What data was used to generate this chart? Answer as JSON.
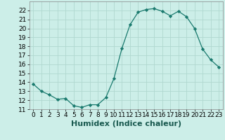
{
  "x": [
    0,
    1,
    2,
    3,
    4,
    5,
    6,
    7,
    8,
    9,
    10,
    11,
    12,
    13,
    14,
    15,
    16,
    17,
    18,
    19,
    20,
    21,
    22,
    23
  ],
  "y": [
    13.8,
    13.0,
    12.6,
    12.1,
    12.2,
    11.4,
    11.2,
    11.5,
    11.5,
    12.3,
    14.4,
    17.8,
    20.4,
    21.8,
    22.1,
    22.2,
    21.9,
    21.4,
    21.9,
    21.3,
    20.0,
    17.7,
    16.5,
    15.7
  ],
  "xlabel": "Humidex (Indice chaleur)",
  "xlim": [
    -0.5,
    23.5
  ],
  "ylim": [
    11,
    23
  ],
  "yticks": [
    11,
    12,
    13,
    14,
    15,
    16,
    17,
    18,
    19,
    20,
    21,
    22
  ],
  "xticks": [
    0,
    1,
    2,
    3,
    4,
    5,
    6,
    7,
    8,
    9,
    10,
    11,
    12,
    13,
    14,
    15,
    16,
    17,
    18,
    19,
    20,
    21,
    22,
    23
  ],
  "line_color": "#1a7a6e",
  "marker": "D",
  "marker_size": 2.2,
  "bg_color": "#cceee8",
  "grid_color": "#b0d8d0",
  "xlabel_fontsize": 8,
  "tick_fontsize": 6.5
}
